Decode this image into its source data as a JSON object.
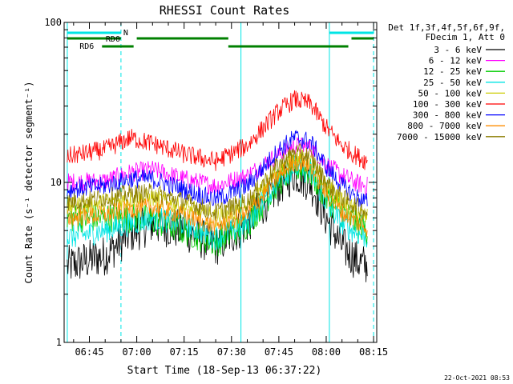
{
  "chart_data": {
    "type": "line",
    "title": "RHESSI Count Rates",
    "xlabel": "Start Time (18-Sep-13 06:37:22)",
    "ylabel": "Count Rate (s⁻¹ detector segment⁻¹)",
    "yscale": "log",
    "ylim": [
      1,
      100
    ],
    "xlim": [
      "06:37",
      "08:16"
    ],
    "x_ticks": [
      "06:45",
      "07:00",
      "07:15",
      "07:30",
      "07:45",
      "08:00",
      "08:15"
    ],
    "y_ticks": [
      "1",
      "10",
      "100"
    ],
    "legend_header": [
      "Det 1f,3f,4f,5f,6f,9f,",
      "FDecim 1, Att 0"
    ],
    "legend_position": "right",
    "series": [
      {
        "name": "3 - 6 keV",
        "color": "#000000",
        "x": [
          "06:38",
          "06:50",
          "06:58",
          "07:05",
          "07:15",
          "07:25",
          "07:35",
          "07:45",
          "07:50",
          "07:55",
          "08:00",
          "08:05",
          "08:10",
          "08:13"
        ],
        "y": [
          3.0,
          3.5,
          4.8,
          5.5,
          5.0,
          4.0,
          5.5,
          9.5,
          11.5,
          10.0,
          6.0,
          4.0,
          3.2,
          3.0
        ]
      },
      {
        "name": "6 - 12 keV",
        "color": "#ff00ff",
        "x": [
          "06:38",
          "06:50",
          "06:58",
          "07:05",
          "07:15",
          "07:25",
          "07:35",
          "07:45",
          "07:50",
          "07:55",
          "08:00",
          "08:05",
          "08:10",
          "08:13"
        ],
        "y": [
          10.0,
          10.2,
          11.5,
          12.0,
          10.5,
          9.5,
          11.0,
          15.0,
          17.0,
          16.5,
          13.0,
          11.0,
          9.8,
          9.5
        ]
      },
      {
        "name": "12 - 25 keV",
        "color": "#00cc00",
        "x": [
          "06:38",
          "06:50",
          "06:58",
          "07:05",
          "07:15",
          "07:25",
          "07:35",
          "07:45",
          "07:50",
          "07:55",
          "08:00",
          "08:05",
          "08:10",
          "08:13"
        ],
        "y": [
          6.0,
          6.0,
          6.0,
          5.8,
          5.0,
          4.2,
          5.5,
          10.0,
          12.5,
          11.5,
          8.0,
          6.5,
          5.5,
          5.0
        ]
      },
      {
        "name": "25 - 50 keV",
        "color": "#00e5e5",
        "x": [
          "06:38",
          "06:50",
          "06:58",
          "07:05",
          "07:15",
          "07:25",
          "07:35",
          "07:45",
          "07:50",
          "07:55",
          "08:00",
          "08:05",
          "08:10",
          "08:13"
        ],
        "y": [
          4.5,
          5.0,
          5.5,
          6.0,
          5.5,
          4.5,
          5.5,
          10.5,
          12.5,
          11.5,
          7.5,
          5.5,
          4.8,
          4.5
        ]
      },
      {
        "name": "50 - 100 keV",
        "color": "#cccc00",
        "x": [
          "06:38",
          "06:50",
          "06:58",
          "07:05",
          "07:15",
          "07:25",
          "07:35",
          "07:45",
          "07:50",
          "07:55",
          "08:00",
          "08:05",
          "08:10",
          "08:13"
        ],
        "y": [
          7.0,
          7.5,
          7.8,
          8.0,
          7.0,
          6.0,
          7.0,
          12.0,
          14.5,
          13.5,
          9.5,
          7.5,
          6.5,
          6.0
        ]
      },
      {
        "name": "100 - 300 keV",
        "color": "#ff0000",
        "x": [
          "06:38",
          "06:50",
          "06:58",
          "07:05",
          "07:15",
          "07:25",
          "07:35",
          "07:45",
          "07:50",
          "07:55",
          "08:00",
          "08:05",
          "08:10",
          "08:13"
        ],
        "y": [
          14.5,
          16.0,
          19.0,
          17.5,
          15.0,
          13.5,
          17.0,
          28.0,
          33.0,
          31.0,
          22.0,
          17.0,
          14.5,
          13.5
        ]
      },
      {
        "name": "300 - 800 keV",
        "color": "#0000ff",
        "x": [
          "06:38",
          "06:50",
          "06:58",
          "07:05",
          "07:15",
          "07:25",
          "07:35",
          "07:45",
          "07:50",
          "07:55",
          "08:00",
          "08:05",
          "08:10",
          "08:13"
        ],
        "y": [
          9.0,
          9.5,
          10.5,
          10.5,
          9.0,
          7.8,
          9.5,
          16.0,
          19.0,
          18.0,
          12.5,
          9.5,
          8.0,
          7.5
        ]
      },
      {
        "name": "800 - 7000 keV",
        "color": "#ff8c00",
        "x": [
          "06:38",
          "06:50",
          "06:58",
          "07:05",
          "07:15",
          "07:25",
          "07:35",
          "07:45",
          "07:50",
          "07:55",
          "08:00",
          "08:05",
          "08:10",
          "08:13"
        ],
        "y": [
          6.0,
          6.3,
          6.8,
          7.0,
          6.2,
          5.3,
          6.3,
          11.0,
          13.5,
          12.5,
          8.5,
          6.5,
          5.6,
          5.2
        ]
      },
      {
        "name": "7000 - 15000 keV",
        "color": "#8b7d00",
        "x": [
          "06:38",
          "06:50",
          "06:58",
          "07:05",
          "07:15",
          "07:25",
          "07:35",
          "07:45",
          "07:50",
          "07:55",
          "08:00",
          "08:05",
          "08:10",
          "08:13"
        ],
        "y": [
          7.5,
          8.0,
          8.5,
          8.6,
          7.6,
          6.5,
          7.6,
          13.0,
          15.5,
          14.5,
          10.0,
          8.0,
          7.0,
          6.5
        ]
      }
    ],
    "night_intervals": [
      [
        "06:38",
        "06:55"
      ],
      [
        "08:01",
        "08:15"
      ]
    ],
    "night_label": "N",
    "rd0_intervals": [
      [
        "06:38",
        "06:55"
      ],
      [
        "07:00",
        "07:29"
      ],
      [
        "08:08",
        "08:15"
      ]
    ],
    "rd0_label": "RD0",
    "rd6_intervals": [
      [
        "06:49",
        "06:59"
      ],
      [
        "07:29",
        "08:07"
      ]
    ],
    "rd6_label": "RD6",
    "vertical_markers": [
      {
        "time": "06:38",
        "style": "solid"
      },
      {
        "time": "06:55",
        "style": "dashed"
      },
      {
        "time": "07:33",
        "style": "solid"
      },
      {
        "time": "08:01",
        "style": "solid"
      },
      {
        "time": "08:15",
        "style": "dashed"
      }
    ],
    "footer_date": "22-Oct-2021 08:53",
    "grid": false,
    "colors": {
      "background": "#ffffff",
      "axis": "#000000",
      "markers": "#00e5e5",
      "rd_bars": "#008000"
    }
  }
}
